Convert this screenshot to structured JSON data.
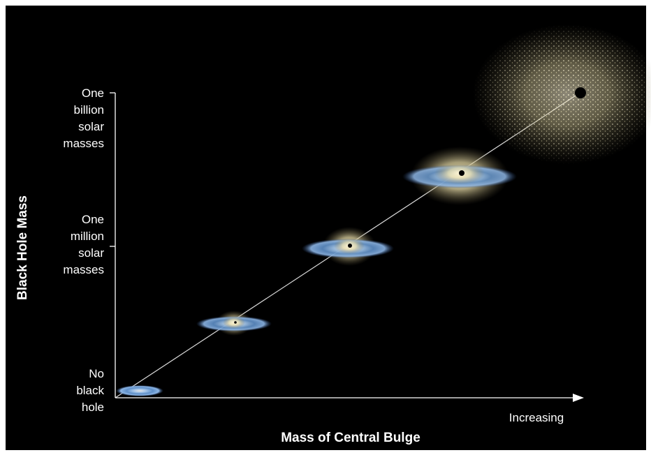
{
  "y_axis": {
    "title": "Black Hole Mass",
    "labels": [
      [
        "One",
        "billion",
        "solar",
        "masses"
      ],
      [
        "One",
        "million",
        "solar",
        "masses"
      ],
      [
        "No",
        "black",
        "hole"
      ]
    ]
  },
  "x_axis": {
    "title": "Mass of Central Bulge",
    "arrow_label": "Increasing"
  }
}
